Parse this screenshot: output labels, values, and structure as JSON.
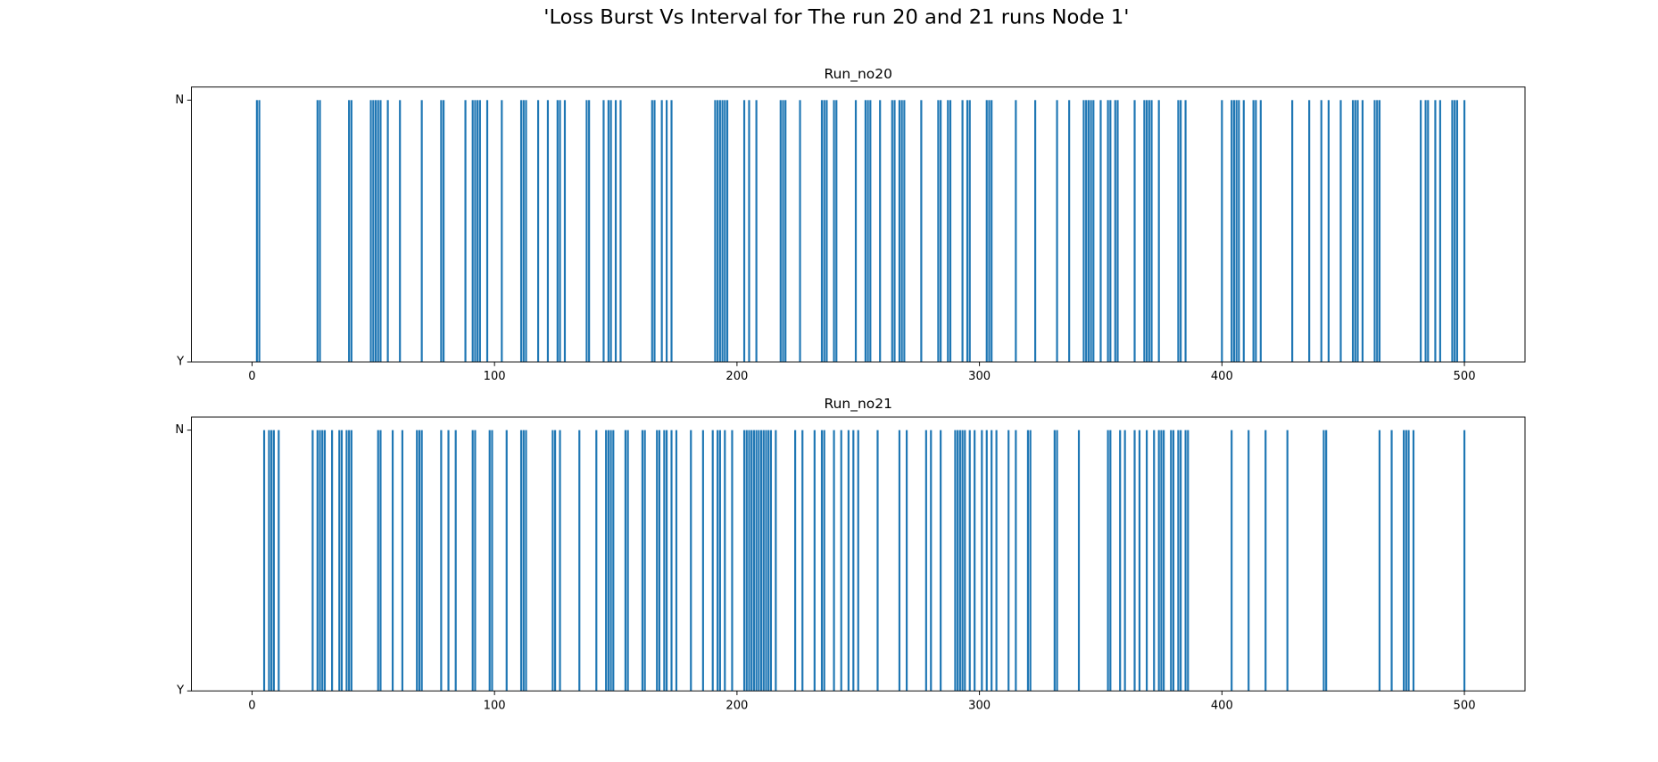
{
  "title": "'Loss Burst Vs Interval for The run 20 and 21 runs Node 1'",
  "chart_data": [
    {
      "type": "bar",
      "title": "Run_no20",
      "color": "#1f77b4",
      "x": [
        2,
        3,
        27,
        28,
        40,
        41,
        49,
        50,
        51,
        52,
        53,
        56,
        61,
        70,
        78,
        79,
        88,
        91,
        92,
        93,
        94,
        97,
        103,
        111,
        112,
        113,
        118,
        122,
        126,
        127,
        129,
        138,
        139,
        145,
        147,
        148,
        150,
        152,
        165,
        166,
        169,
        171,
        173,
        191,
        192,
        193,
        194,
        195,
        196,
        203,
        205,
        208,
        218,
        219,
        220,
        226,
        235,
        236,
        237,
        240,
        241,
        249,
        253,
        254,
        255,
        259,
        264,
        265,
        267,
        268,
        269,
        276,
        283,
        284,
        287,
        288,
        293,
        295,
        296,
        303,
        304,
        305,
        315,
        323,
        332,
        337,
        343,
        344,
        345,
        346,
        347,
        350,
        353,
        354,
        356,
        357,
        364,
        368,
        369,
        370,
        371,
        374,
        382,
        383,
        385,
        400,
        404,
        405,
        406,
        407,
        409,
        413,
        414,
        416,
        429,
        436,
        441,
        444,
        449,
        454,
        455,
        456,
        458,
        463,
        464,
        465,
        482,
        484,
        485,
        488,
        490,
        495,
        496,
        497,
        500
      ],
      "values": [
        1,
        1,
        1,
        1,
        1,
        1,
        1,
        1,
        1,
        1,
        1,
        1,
        1,
        1,
        1,
        1,
        1,
        1,
        1,
        1,
        1,
        1,
        1,
        1,
        1,
        1,
        1,
        1,
        1,
        1,
        1,
        1,
        1,
        1,
        1,
        1,
        1,
        1,
        1,
        1,
        1,
        1,
        1,
        1,
        1,
        1,
        1,
        1,
        1,
        1,
        1,
        1,
        1,
        1,
        1,
        1,
        1,
        1,
        1,
        1,
        1,
        1,
        1,
        1,
        1,
        1,
        1,
        1,
        1,
        1,
        1,
        1,
        1,
        1,
        1,
        1,
        1,
        1,
        1,
        1,
        1,
        1,
        1,
        1,
        1,
        1,
        1,
        1,
        1,
        1,
        1,
        1,
        1,
        1,
        1,
        1,
        1,
        1,
        1,
        1,
        1,
        1,
        1,
        1,
        1,
        1,
        1,
        1,
        1,
        1,
        1,
        1,
        1,
        1,
        1,
        1,
        1,
        1,
        1,
        1,
        1,
        1,
        1,
        1,
        1,
        1,
        1,
        1,
        1,
        1,
        1,
        1,
        1,
        1,
        1
      ],
      "xlim": [
        -25,
        525
      ],
      "xticks": [
        0,
        100,
        200,
        300,
        400,
        500
      ],
      "ylim": [
        0,
        1.05
      ],
      "yticks": [
        {
          "value": 0,
          "label": "Y"
        },
        {
          "value": 1,
          "label": "N"
        }
      ]
    },
    {
      "type": "bar",
      "title": "Run_no21",
      "color": "#1f77b4",
      "x": [
        5,
        7,
        8,
        9,
        11,
        25,
        27,
        28,
        29,
        30,
        33,
        36,
        37,
        39,
        40,
        41,
        52,
        53,
        58,
        62,
        68,
        69,
        70,
        78,
        81,
        84,
        91,
        92,
        98,
        99,
        105,
        111,
        112,
        113,
        124,
        125,
        127,
        135,
        142,
        146,
        147,
        148,
        149,
        154,
        155,
        161,
        162,
        167,
        168,
        170,
        171,
        173,
        175,
        181,
        186,
        190,
        192,
        193,
        195,
        198,
        203,
        204,
        205,
        206,
        207,
        208,
        209,
        210,
        211,
        212,
        213,
        214,
        216,
        224,
        227,
        232,
        235,
        236,
        240,
        243,
        246,
        248,
        250,
        258,
        267,
        270,
        278,
        280,
        284,
        290,
        291,
        292,
        293,
        294,
        296,
        298,
        301,
        303,
        305,
        307,
        312,
        315,
        320,
        321,
        331,
        332,
        341,
        353,
        354,
        358,
        360,
        364,
        366,
        369,
        372,
        374,
        375,
        376,
        379,
        380,
        382,
        383,
        385,
        386,
        404,
        411,
        418,
        427,
        442,
        443,
        465,
        470,
        475,
        476,
        477,
        479,
        500
      ],
      "values": [
        1,
        1,
        1,
        1,
        1,
        1,
        1,
        1,
        1,
        1,
        1,
        1,
        1,
        1,
        1,
        1,
        1,
        1,
        1,
        1,
        1,
        1,
        1,
        1,
        1,
        1,
        1,
        1,
        1,
        1,
        1,
        1,
        1,
        1,
        1,
        1,
        1,
        1,
        1,
        1,
        1,
        1,
        1,
        1,
        1,
        1,
        1,
        1,
        1,
        1,
        1,
        1,
        1,
        1,
        1,
        1,
        1,
        1,
        1,
        1,
        1,
        1,
        1,
        1,
        1,
        1,
        1,
        1,
        1,
        1,
        1,
        1,
        1,
        1,
        1,
        1,
        1,
        1,
        1,
        1,
        1,
        1,
        1,
        1,
        1,
        1,
        1,
        1,
        1,
        1,
        1,
        1,
        1,
        1,
        1,
        1,
        1,
        1,
        1,
        1,
        1,
        1,
        1,
        1,
        1,
        1,
        1,
        1,
        1,
        1,
        1,
        1,
        1,
        1,
        1,
        1,
        1,
        1,
        1,
        1,
        1,
        1,
        1,
        1,
        1,
        1,
        1,
        1,
        1,
        1,
        1,
        1,
        1,
        1,
        1,
        1,
        1
      ],
      "xlim": [
        -25,
        525
      ],
      "xticks": [
        0,
        100,
        200,
        300,
        400,
        500
      ],
      "ylim": [
        0,
        1.05
      ],
      "yticks": [
        {
          "value": 0,
          "label": "Y"
        },
        {
          "value": 1,
          "label": "N"
        }
      ]
    }
  ]
}
